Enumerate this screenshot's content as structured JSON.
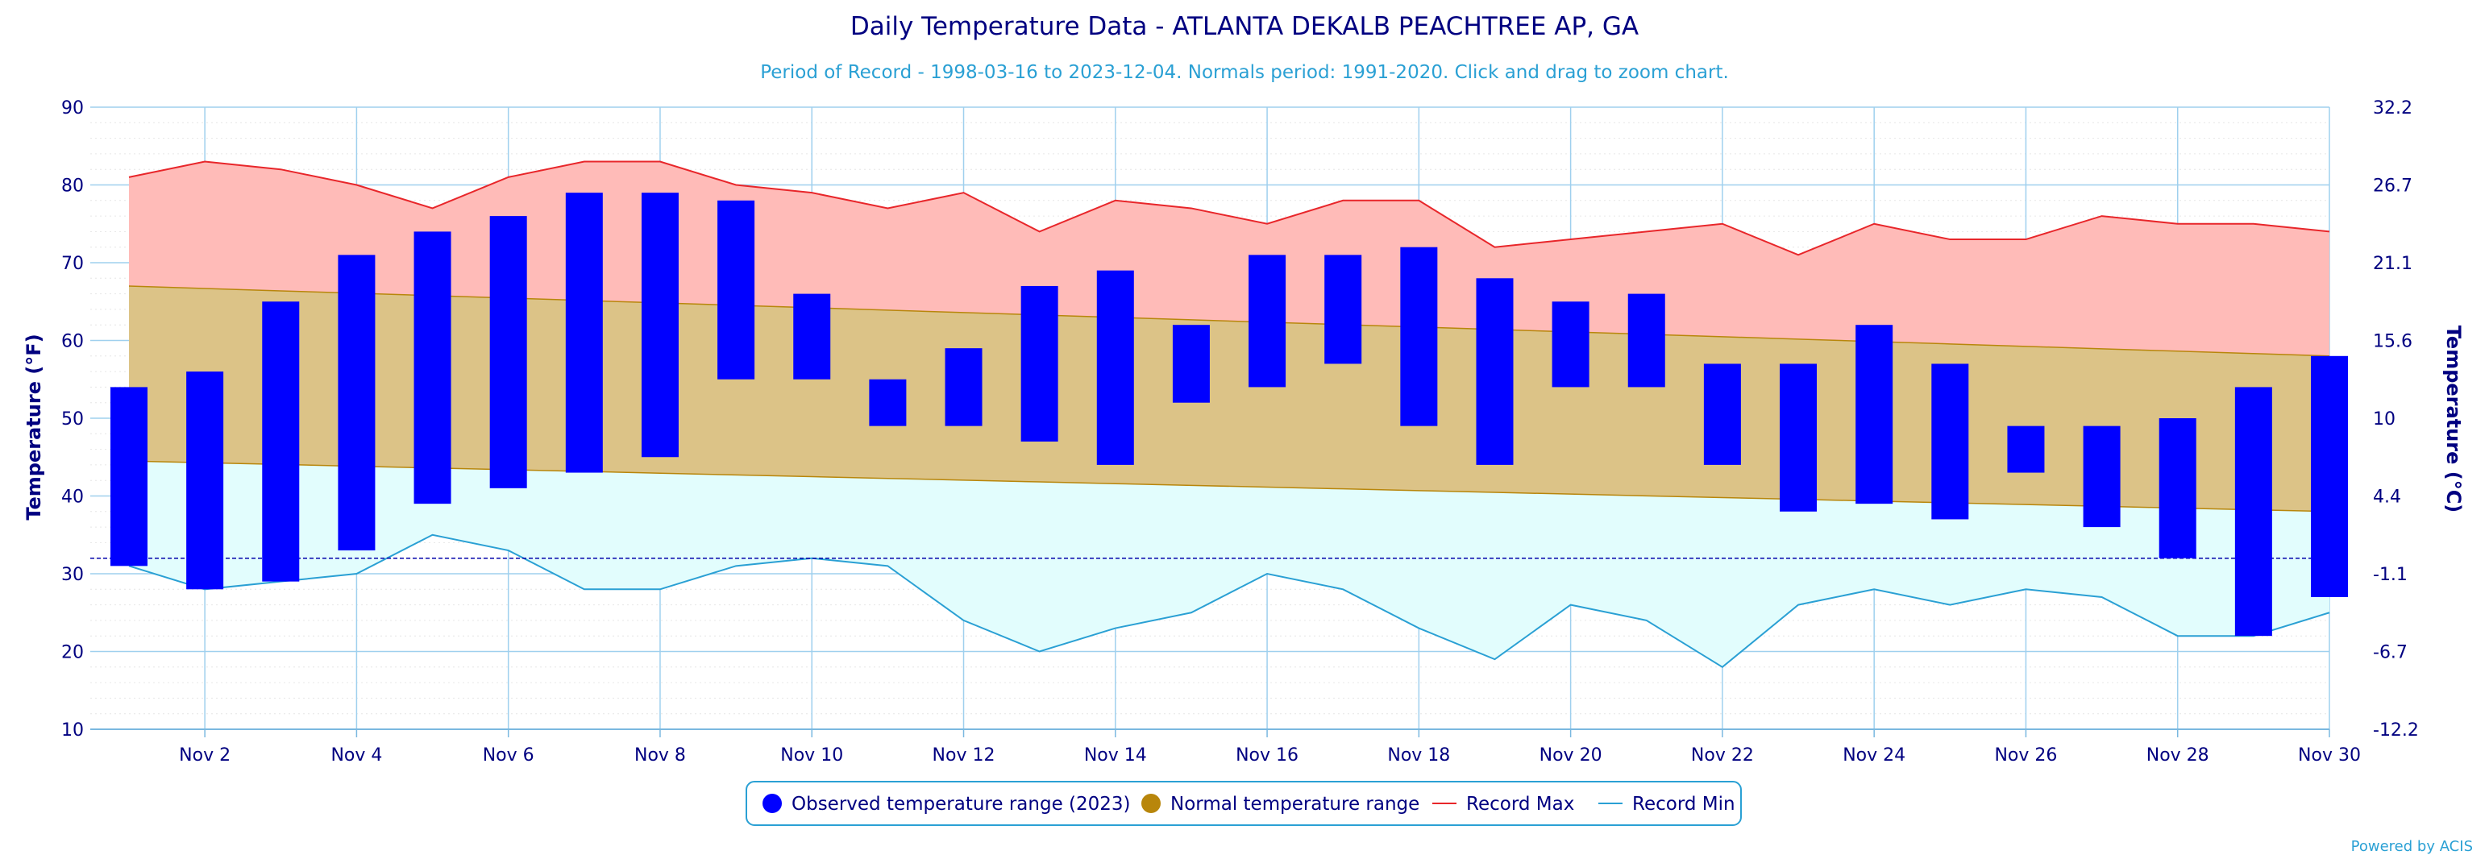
{
  "chart_data": {
    "type": "bar",
    "title": "Daily Temperature Data - ATLANTA DEKALB PEACHTREE AP, GA",
    "subtitle": "Period of Record - 1998-03-16 to 2023-12-04. Normals period: 1991-2020. Click and drag to zoom chart.",
    "ylabel": "Temperature (°F)",
    "ylabel_right": "Temperature (°C)",
    "ylim": [
      10,
      90
    ],
    "xlim": [
      1,
      30
    ],
    "y_ticks": [
      10,
      20,
      30,
      40,
      50,
      60,
      70,
      80,
      90
    ],
    "y_ticks_right": [
      "-12.2",
      "-6.7",
      "-1.1",
      "4.4",
      "10",
      "15.6",
      "21.1",
      "26.7",
      "32.2"
    ],
    "x_ticks": [
      {
        "day": 2,
        "label": "Nov 2"
      },
      {
        "day": 4,
        "label": "Nov 4"
      },
      {
        "day": 6,
        "label": "Nov 6"
      },
      {
        "day": 8,
        "label": "Nov 8"
      },
      {
        "day": 10,
        "label": "Nov 10"
      },
      {
        "day": 12,
        "label": "Nov 12"
      },
      {
        "day": 14,
        "label": "Nov 14"
      },
      {
        "day": 16,
        "label": "Nov 16"
      },
      {
        "day": 18,
        "label": "Nov 18"
      },
      {
        "day": 20,
        "label": "Nov 20"
      },
      {
        "day": 22,
        "label": "Nov 22"
      },
      {
        "day": 24,
        "label": "Nov 24"
      },
      {
        "day": 26,
        "label": "Nov 26"
      },
      {
        "day": 28,
        "label": "Nov 28"
      },
      {
        "day": 30,
        "label": "Nov 30"
      }
    ],
    "freezing_line": 32,
    "grid": true,
    "legend_position": "bottom-center",
    "days": [
      1,
      2,
      3,
      4,
      5,
      6,
      7,
      8,
      9,
      10,
      11,
      12,
      13,
      14,
      15,
      16,
      17,
      18,
      19,
      20,
      21,
      22,
      23,
      24,
      25,
      26,
      27,
      28,
      29,
      30
    ],
    "series": [
      {
        "name": "Observed temperature range (2023)",
        "color": "#0000ff",
        "low": [
          31,
          28,
          29,
          33,
          39,
          41,
          43,
          45,
          55,
          55,
          49,
          49,
          47,
          44,
          52,
          54,
          57,
          49,
          44,
          54,
          54,
          44,
          38,
          39,
          37,
          43,
          36,
          32,
          22,
          27
        ],
        "high": [
          54,
          56,
          65,
          71,
          74,
          76,
          79,
          79,
          78,
          66,
          55,
          59,
          67,
          69,
          62,
          71,
          71,
          72,
          68,
          65,
          66,
          57,
          57,
          62,
          57,
          49,
          49,
          50,
          54,
          58
        ]
      },
      {
        "name": "Normal temperature range",
        "color": "#b8860b",
        "low": [
          44.5,
          38
        ],
        "high": [
          67,
          58
        ]
      },
      {
        "name": "Record Max",
        "color": "#e8262a",
        "values": [
          81,
          83,
          82,
          80,
          77,
          81,
          83,
          83,
          80,
          79,
          77,
          79,
          74,
          78,
          77,
          75,
          78,
          78,
          72,
          73,
          74,
          75,
          71,
          75,
          73,
          73,
          76,
          75,
          75,
          74
        ]
      },
      {
        "name": "Record Min",
        "color": "#2aa0d4",
        "values": [
          31,
          28,
          29,
          30,
          35,
          33,
          28,
          28,
          31,
          32,
          31,
          24,
          20,
          23,
          25,
          30,
          28,
          23,
          19,
          26,
          24,
          18,
          26,
          28,
          26,
          28,
          27,
          22,
          22,
          25
        ]
      }
    ]
  },
  "credits": "Powered by ACIS"
}
